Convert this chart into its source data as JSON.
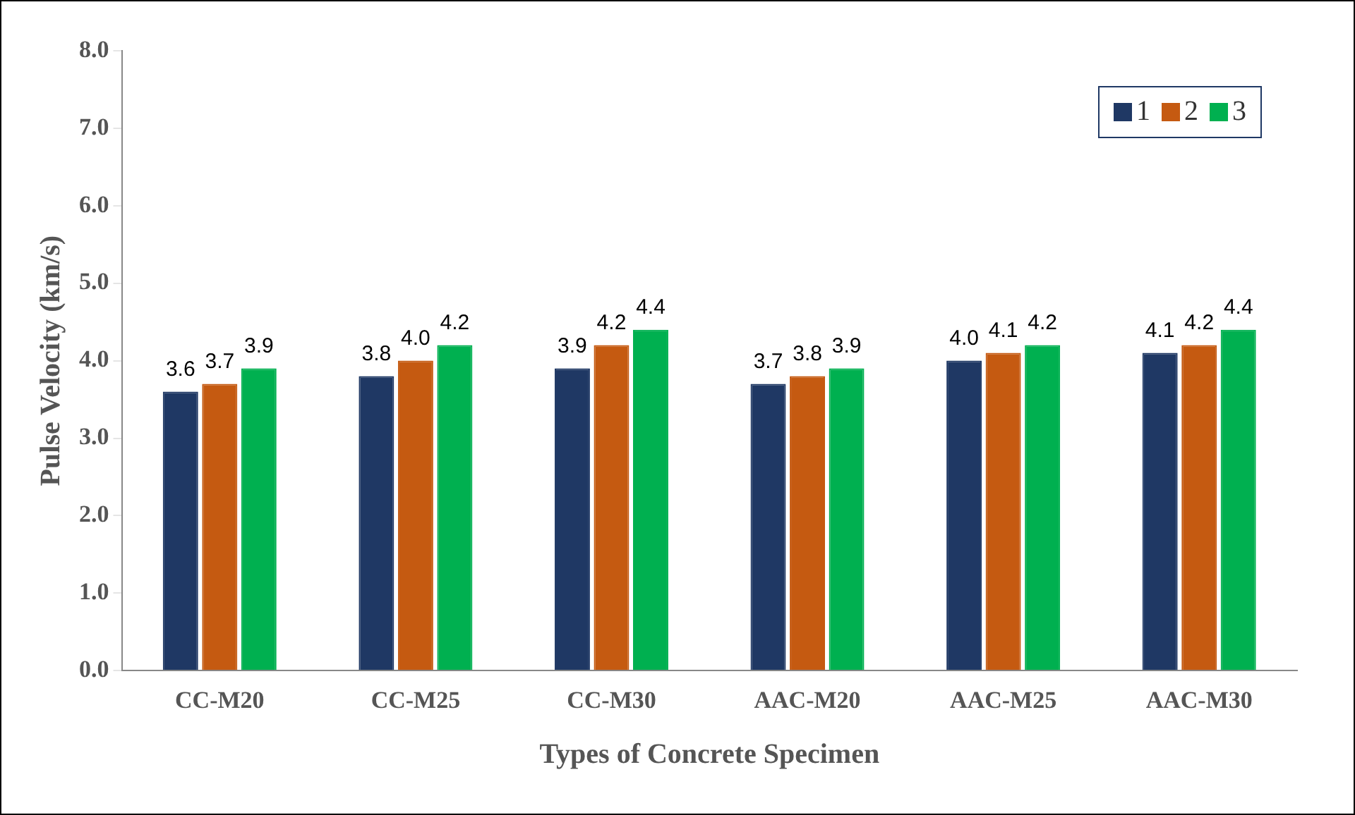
{
  "chart_data": {
    "type": "bar",
    "xlabel": "Types of Concrete Specimen",
    "ylabel": "Pulse Velocity (km/s)",
    "categories": [
      "CC-M20",
      "CC-M25",
      "CC-M30",
      "AAC-M20",
      "AAC-M25",
      "AAC-M30"
    ],
    "series": [
      {
        "name": "1",
        "color": "#1f3864",
        "values": [
          3.6,
          3.8,
          3.9,
          3.7,
          4.0,
          4.1
        ],
        "value_labels": [
          "3.6",
          "3.8",
          "3.9",
          "3.7",
          "4.0",
          "4.1"
        ]
      },
      {
        "name": "2",
        "color": "#c55a11",
        "values": [
          3.7,
          4.0,
          4.2,
          3.8,
          4.1,
          4.2
        ],
        "value_labels": [
          "3.7",
          "4.0",
          "4.2",
          "3.8",
          "4.1",
          "4.2"
        ]
      },
      {
        "name": "3",
        "color": "#00b050",
        "values": [
          3.9,
          4.2,
          4.4,
          3.9,
          4.2,
          4.4
        ],
        "value_labels": [
          "3.9",
          "4.2",
          "4.4",
          "3.9",
          "4.2",
          "4.4"
        ]
      }
    ],
    "ylim": [
      0,
      8
    ],
    "yticks": [
      {
        "value": 0,
        "label": "0.0"
      },
      {
        "value": 1,
        "label": "1.0"
      },
      {
        "value": 2,
        "label": "2.0"
      },
      {
        "value": 3,
        "label": "3.0"
      },
      {
        "value": 4,
        "label": "4.0"
      },
      {
        "value": 5,
        "label": "5.0"
      },
      {
        "value": 6,
        "label": "6.0"
      },
      {
        "value": 7,
        "label": "7.0"
      },
      {
        "value": 8,
        "label": "8.0"
      }
    ],
    "grid": false,
    "legend": "top right"
  }
}
